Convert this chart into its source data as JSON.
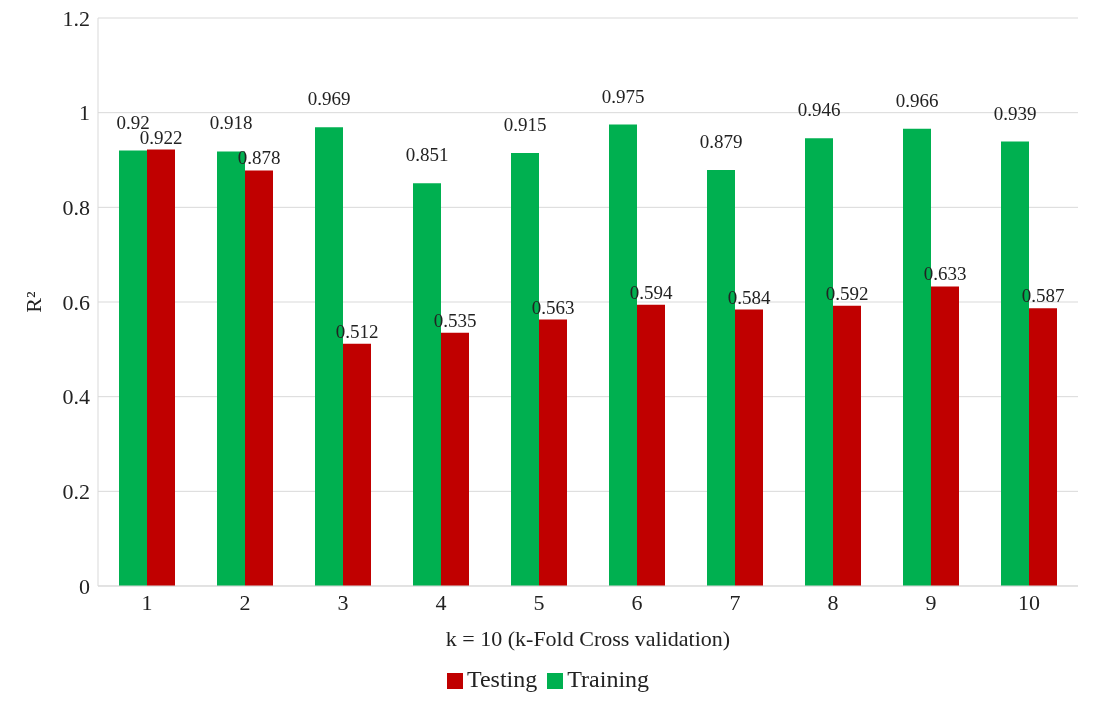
{
  "chart_data": {
    "type": "bar",
    "xlabel": "k = 10 (k-Fold Cross validation)",
    "ylabel": "R²",
    "categories": [
      "1",
      "2",
      "3",
      "4",
      "5",
      "6",
      "7",
      "8",
      "9",
      "10"
    ],
    "series": [
      {
        "name": "Training",
        "color": "#00b050",
        "values": [
          0.92,
          0.918,
          0.969,
          0.851,
          0.915,
          0.975,
          0.879,
          0.946,
          0.966,
          0.939
        ]
      },
      {
        "name": "Testing",
        "color": "#c00000",
        "values": [
          0.922,
          0.878,
          0.512,
          0.535,
          0.563,
          0.594,
          0.584,
          0.592,
          0.633,
          0.587
        ]
      }
    ],
    "ylim": [
      0,
      1.2
    ],
    "yticks": [
      0,
      0.2,
      0.4,
      0.6,
      0.8,
      1,
      1.2
    ],
    "grid": "y",
    "legend": "bottom",
    "data_labels": true
  }
}
